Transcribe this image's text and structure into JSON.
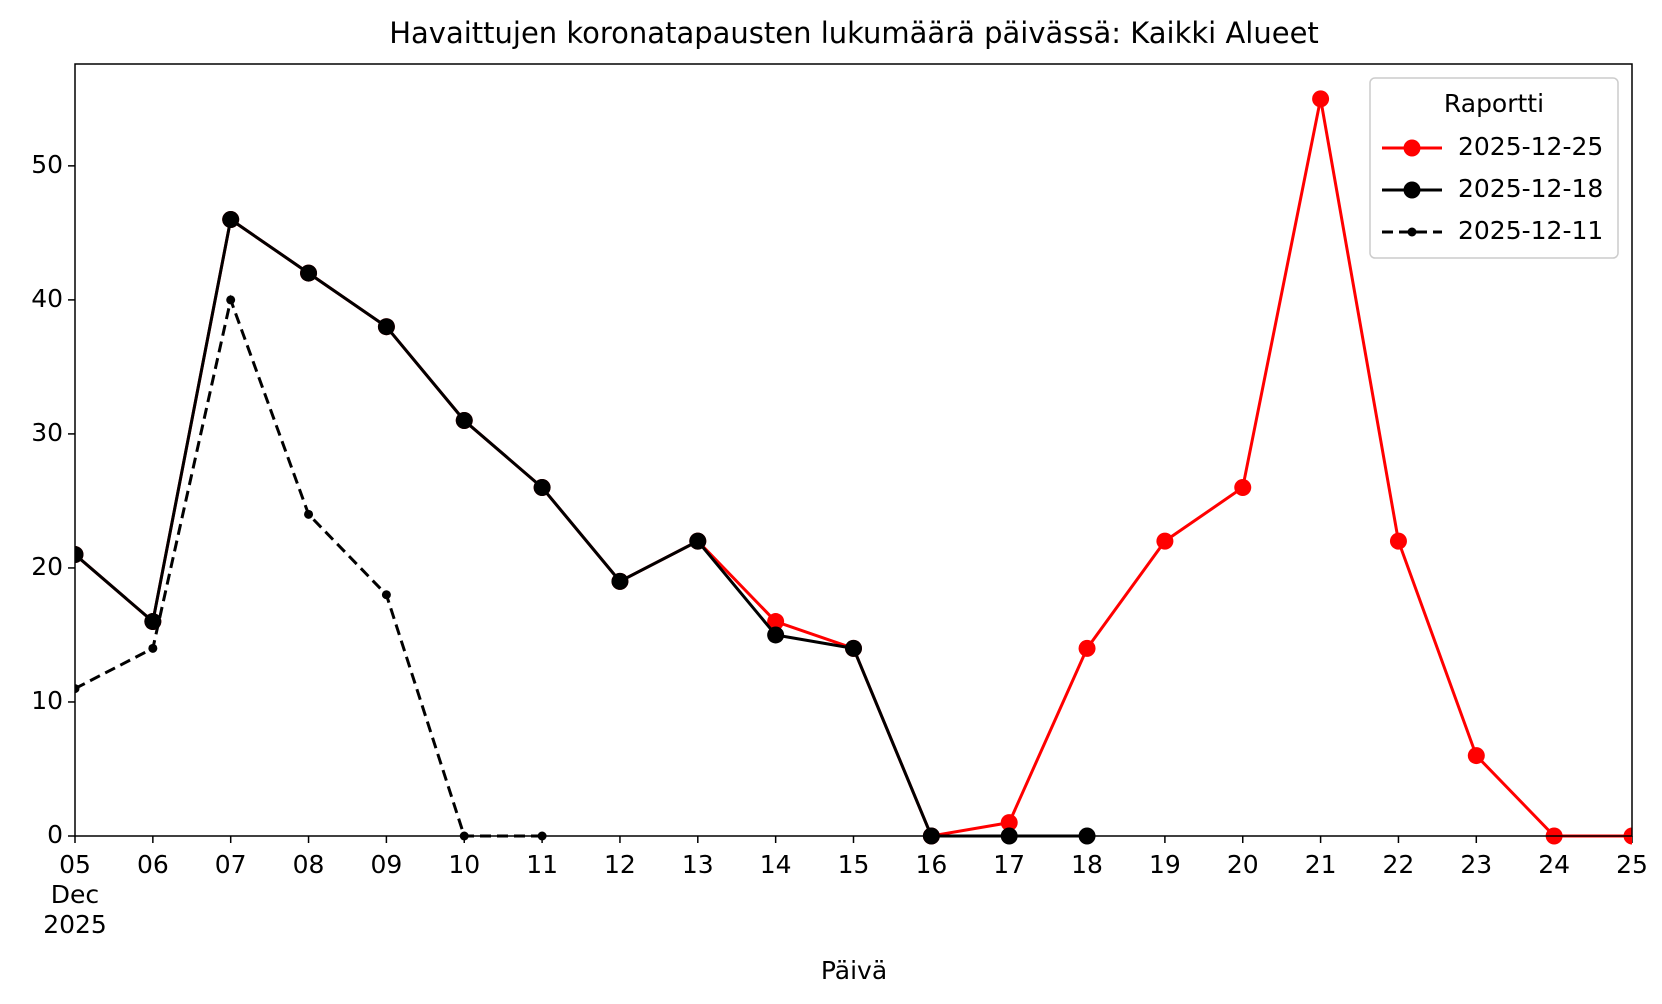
{
  "chart_data": {
    "type": "line",
    "title": "Havaittujen koronatapausten lukumäärä päivässä: Kaikki Alueet",
    "x_label": "Päivä",
    "x": [
      "2025-12-05",
      "2025-12-06",
      "2025-12-07",
      "2025-12-08",
      "2025-12-09",
      "2025-12-10",
      "2025-12-11",
      "2025-12-12",
      "2025-12-13",
      "2025-12-14",
      "2025-12-15",
      "2025-12-16",
      "2025-12-17",
      "2025-12-18",
      "2025-12-19",
      "2025-12-20",
      "2025-12-21",
      "2025-12-22",
      "2025-12-23",
      "2025-12-24",
      "2025-12-25"
    ],
    "xlim": [
      "2025-12-05",
      "2025-12-25"
    ],
    "xticks": [
      {
        "value": "2025-12-05",
        "label": "05\nDec\n2025"
      },
      {
        "value": "2025-12-06",
        "label": "06"
      },
      {
        "value": "2025-12-07",
        "label": "07"
      },
      {
        "value": "2025-12-08",
        "label": "08"
      },
      {
        "value": "2025-12-09",
        "label": "09"
      },
      {
        "value": "2025-12-10",
        "label": "10"
      },
      {
        "value": "2025-12-11",
        "label": "11"
      },
      {
        "value": "2025-12-12",
        "label": "12"
      },
      {
        "value": "2025-12-13",
        "label": "13"
      },
      {
        "value": "2025-12-14",
        "label": "14"
      },
      {
        "value": "2025-12-15",
        "label": "15"
      },
      {
        "value": "2025-12-16",
        "label": "16"
      },
      {
        "value": "2025-12-17",
        "label": "17"
      },
      {
        "value": "2025-12-18",
        "label": "18"
      },
      {
        "value": "2025-12-19",
        "label": "19"
      },
      {
        "value": "2025-12-20",
        "label": "20"
      },
      {
        "value": "2025-12-21",
        "label": "21"
      },
      {
        "value": "2025-12-22",
        "label": "22"
      },
      {
        "value": "2025-12-23",
        "label": "23"
      },
      {
        "value": "2025-12-24",
        "label": "24"
      },
      {
        "value": "2025-12-25",
        "label": "25"
      }
    ],
    "ylim": [
      0,
      57.6
    ],
    "yticks": [
      0,
      10,
      20,
      30,
      40,
      50
    ],
    "legend_title": "Raportti",
    "legend_position": "upper right",
    "series": [
      {
        "name": "2025-12-25",
        "color": "#ff0000",
        "linestyle": "solid",
        "marker": "large",
        "values": [
          21,
          16,
          46,
          42,
          38,
          31,
          26,
          19,
          22,
          16,
          14,
          0,
          1,
          14,
          22,
          26,
          55,
          22,
          6,
          0,
          0
        ]
      },
      {
        "name": "2025-12-18",
        "color": "#000000",
        "linestyle": "solid",
        "marker": "large",
        "values": [
          21,
          16,
          46,
          42,
          38,
          31,
          26,
          19,
          22,
          15,
          14,
          0,
          0,
          0,
          null,
          null,
          null,
          null,
          null,
          null,
          null
        ]
      },
      {
        "name": "2025-12-11",
        "color": "#000000",
        "linestyle": "dashed",
        "marker": "small",
        "values": [
          11,
          14,
          40,
          24,
          18,
          0,
          0,
          null,
          null,
          null,
          null,
          null,
          null,
          null,
          null,
          null,
          null,
          null,
          null,
          null,
          null
        ]
      }
    ]
  }
}
